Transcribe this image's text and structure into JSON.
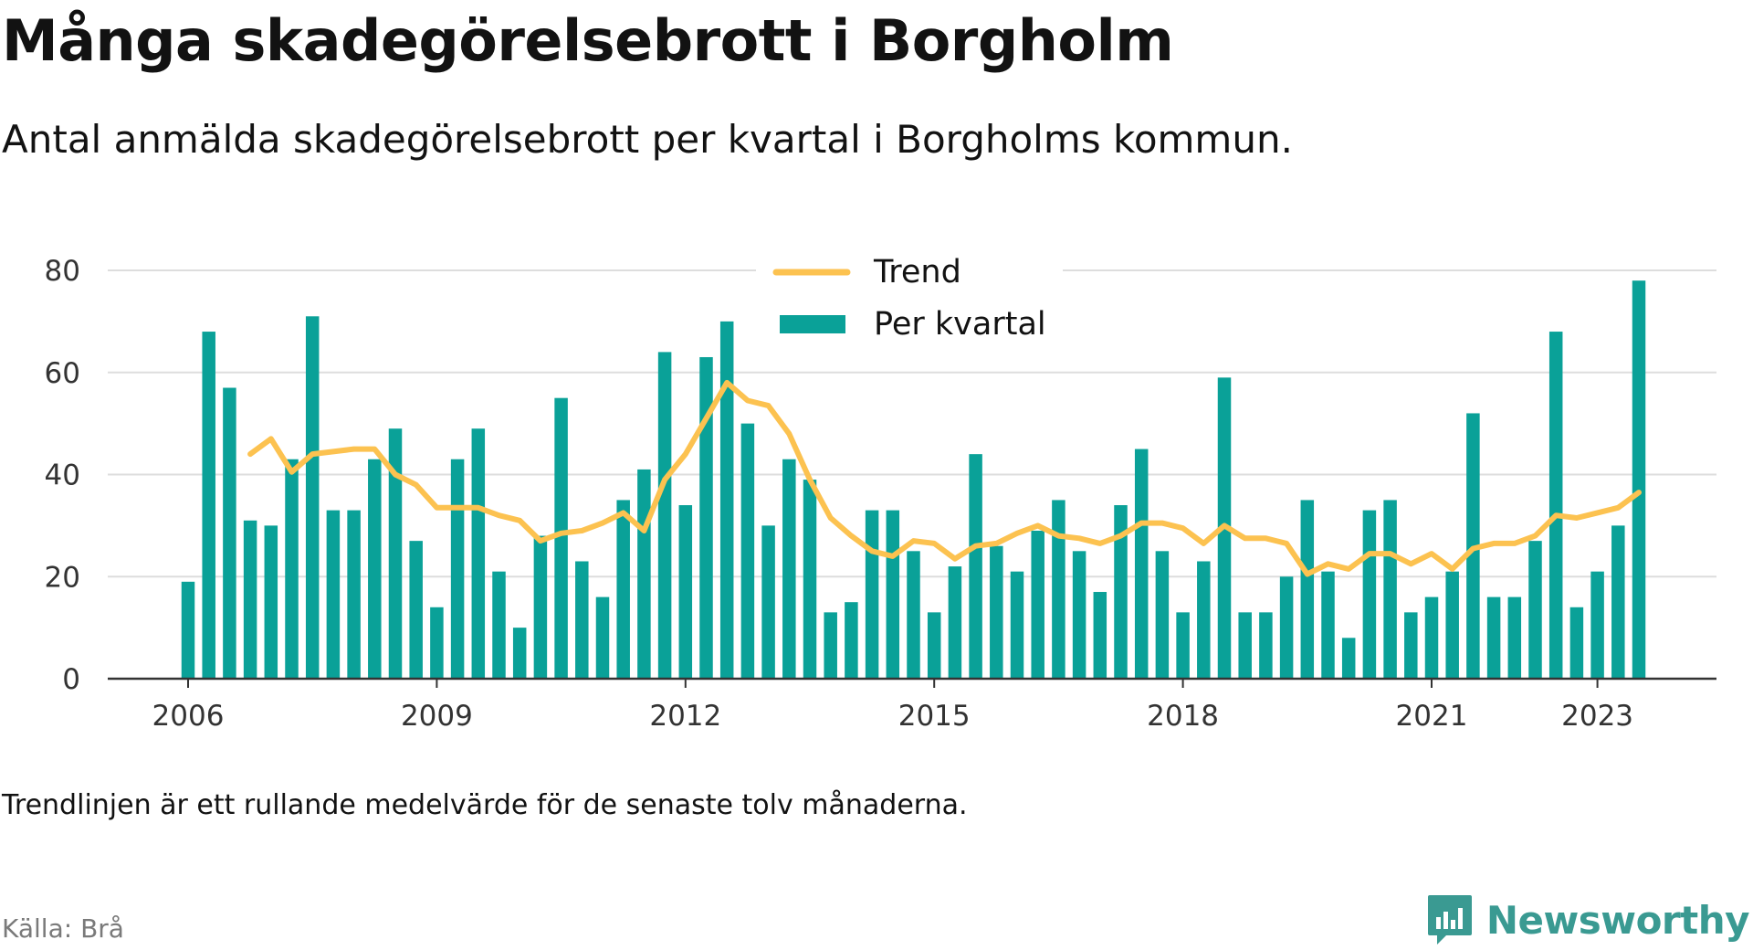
{
  "header": {
    "title": "Många skadegörelsebrott i Borgholm",
    "subtitle": "Antal anmälda skadegörelsebrott per kvartal i Borgholms kommun."
  },
  "footer": {
    "note": "Trendlinjen är ett rullande medelvärde för de senaste tolv månaderna.",
    "source": "Källa: Brå",
    "brand": "Newsworthy"
  },
  "colors": {
    "bars": "#0aa198",
    "trend": "#fcc250",
    "grid": "#dddddd",
    "axis": "#333333",
    "brand": "#3a9a92"
  },
  "icons": {
    "brand": "newsworthy-logo-icon"
  },
  "chart_data": {
    "type": "bar",
    "ylim": [
      0,
      80
    ],
    "yticks": [
      0,
      20,
      40,
      60,
      80
    ],
    "xticks": [
      {
        "label": "2006",
        "year": 2006
      },
      {
        "label": "2009",
        "year": 2009
      },
      {
        "label": "2012",
        "year": 2012
      },
      {
        "label": "2015",
        "year": 2015
      },
      {
        "label": "2018",
        "year": 2018
      },
      {
        "label": "2021",
        "year": 2021
      },
      {
        "label": "2023",
        "year": 2023
      }
    ],
    "legend": {
      "placement": "top-center",
      "entries": [
        {
          "name": "Trend",
          "kind": "line"
        },
        {
          "name": "Per kvartal",
          "kind": "bar"
        }
      ]
    },
    "quarters": [
      "2006-Q1",
      "2006-Q2",
      "2006-Q3",
      "2006-Q4",
      "2007-Q1",
      "2007-Q2",
      "2007-Q3",
      "2007-Q4",
      "2008-Q1",
      "2008-Q2",
      "2008-Q3",
      "2008-Q4",
      "2009-Q1",
      "2009-Q2",
      "2009-Q3",
      "2009-Q4",
      "2010-Q1",
      "2010-Q2",
      "2010-Q3",
      "2010-Q4",
      "2011-Q1",
      "2011-Q2",
      "2011-Q3",
      "2011-Q4",
      "2012-Q1",
      "2012-Q2",
      "2012-Q3",
      "2012-Q4",
      "2013-Q1",
      "2013-Q2",
      "2013-Q3",
      "2013-Q4",
      "2014-Q1",
      "2014-Q2",
      "2014-Q3",
      "2014-Q4",
      "2015-Q1",
      "2015-Q2",
      "2015-Q3",
      "2015-Q4",
      "2016-Q1",
      "2016-Q2",
      "2016-Q3",
      "2016-Q4",
      "2017-Q1",
      "2017-Q2",
      "2017-Q3",
      "2017-Q4",
      "2018-Q1",
      "2018-Q2",
      "2018-Q3",
      "2018-Q4",
      "2019-Q1",
      "2019-Q2",
      "2019-Q3",
      "2019-Q4",
      "2020-Q1",
      "2020-Q2",
      "2020-Q3",
      "2020-Q4",
      "2021-Q1",
      "2021-Q2",
      "2021-Q3",
      "2021-Q4",
      "2022-Q1",
      "2022-Q2",
      "2022-Q3",
      "2022-Q4",
      "2023-Q1",
      "2023-Q2",
      "2023-Q3",
      "2023-Q4"
    ],
    "series": [
      {
        "name": "Per kvartal",
        "values": [
          19,
          68,
          57,
          31,
          30,
          43,
          71,
          33,
          33,
          43,
          49,
          27,
          14,
          43,
          49,
          21,
          10,
          28,
          55,
          23,
          16,
          35,
          41,
          64,
          34,
          63,
          70,
          50,
          30,
          43,
          39,
          13,
          15,
          33,
          33,
          25,
          13,
          22,
          44,
          26,
          21,
          29,
          35,
          25,
          17,
          34,
          45,
          25,
          13,
          23,
          59,
          13,
          13,
          20,
          35,
          21,
          8,
          33,
          35,
          13,
          16,
          21,
          52,
          16,
          16,
          27,
          68,
          14,
          21,
          30,
          78,
          null
        ]
      },
      {
        "name": "Trend",
        "values": [
          null,
          null,
          null,
          44,
          47,
          40.5,
          44,
          44.5,
          45,
          45,
          40,
          38,
          33.5,
          33.5,
          33.5,
          32,
          31,
          27,
          28.5,
          29,
          30.5,
          32.5,
          29,
          39,
          44,
          51,
          58,
          54.5,
          53.5,
          48,
          39,
          31.5,
          28,
          25,
          24,
          27,
          26.5,
          23.5,
          26,
          26.5,
          28.5,
          30,
          28,
          27.5,
          26.5,
          28,
          30.5,
          30.5,
          29.5,
          26.5,
          30,
          27.5,
          27.5,
          26.5,
          20.5,
          22.5,
          21.5,
          24.5,
          24.5,
          22.5,
          24.5,
          21.5,
          25.5,
          26.5,
          26.5,
          28,
          32,
          31.5,
          32.5,
          33.5,
          36.5,
          null
        ]
      }
    ]
  }
}
